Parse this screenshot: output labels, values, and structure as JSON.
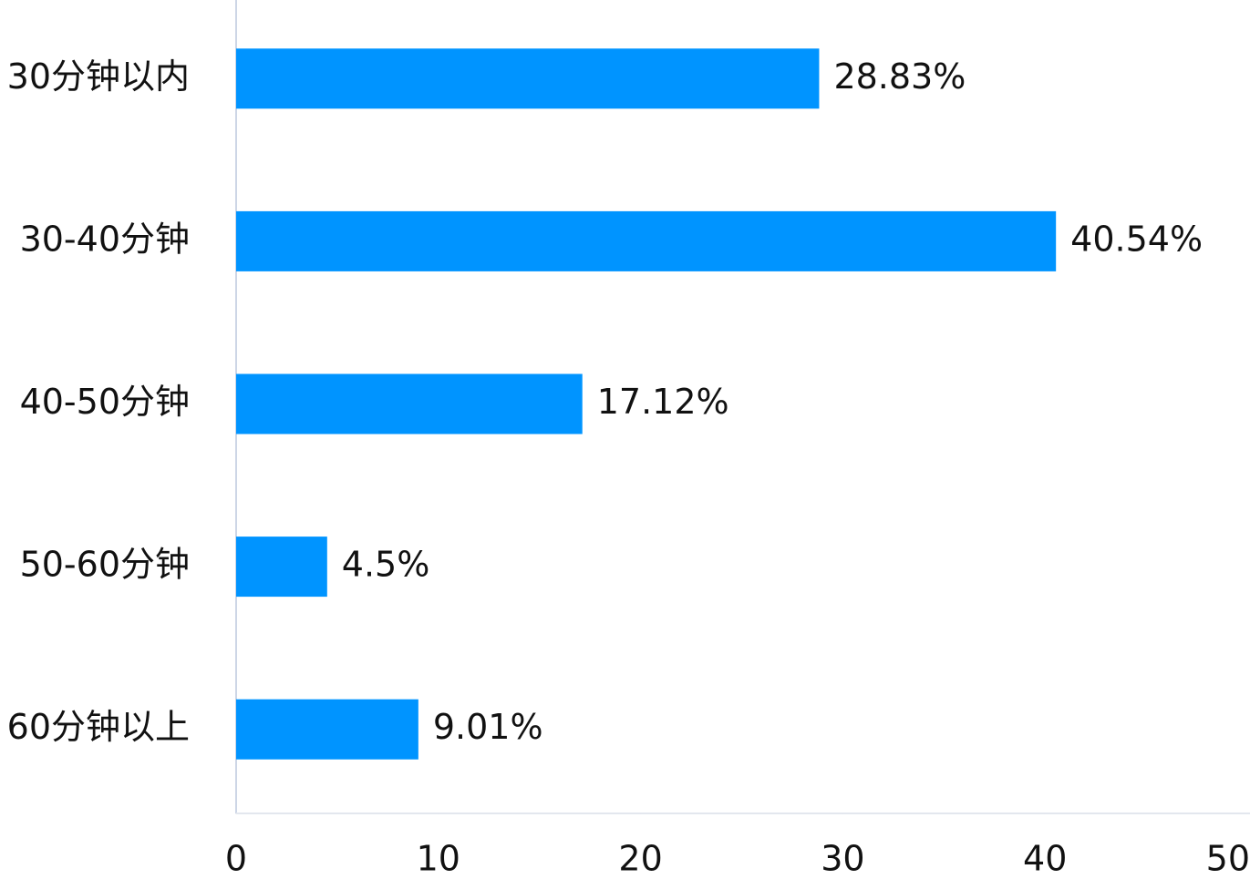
{
  "chart_data": {
    "type": "bar",
    "orientation": "horizontal",
    "categories": [
      "30分钟以内",
      "30-40分钟",
      "40-50分钟",
      "50-60分钟",
      "60分钟以上"
    ],
    "values": [
      28.83,
      40.54,
      17.12,
      4.5,
      9.01
    ],
    "value_labels": [
      "28.83%",
      "40.54%",
      "17.12%",
      "4.5%",
      "9.01%"
    ],
    "color": "#0094ff",
    "xlim": [
      0,
      50
    ],
    "xticks": [
      0,
      10,
      20,
      30,
      40,
      50
    ],
    "grid": false
  }
}
